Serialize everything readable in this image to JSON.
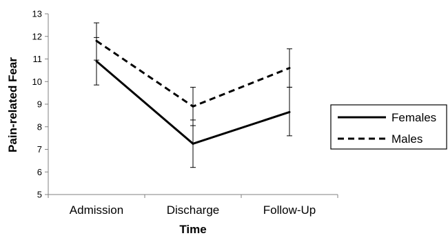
{
  "chart_data": {
    "type": "line",
    "title": "",
    "xlabel": "Time",
    "ylabel": "Pain-related Fear",
    "categories": [
      "Admission",
      "Discharge",
      "Follow-Up"
    ],
    "ylim": [
      5,
      13
    ],
    "yticks": [
      "5",
      "6",
      "7",
      "8",
      "9",
      "10",
      "11",
      "12",
      "13"
    ],
    "grid": false,
    "legend_position": "right",
    "series": [
      {
        "name": "Females",
        "style": "solid",
        "color": "#000000",
        "values": [
          10.9,
          7.25,
          8.65
        ],
        "error_low": [
          9.85,
          6.2,
          7.6
        ],
        "error_high": [
          11.95,
          8.3,
          9.75
        ]
      },
      {
        "name": "Males",
        "style": "dashed",
        "color": "#000000",
        "values": [
          11.8,
          8.9,
          10.6
        ],
        "error_low": [
          10.95,
          8.05,
          9.75
        ],
        "error_high": [
          12.6,
          9.75,
          11.45
        ]
      }
    ]
  }
}
